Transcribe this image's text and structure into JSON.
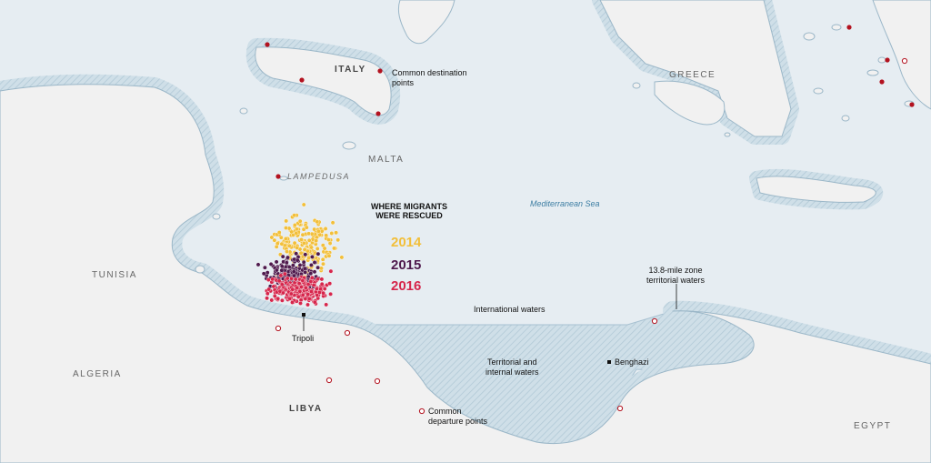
{
  "map_labels": {
    "italy": "ITALY",
    "greece": "GREECE",
    "malta": "MALTA",
    "lampedusa": "LAMPEDUSA",
    "tunisia": "TUNISIA",
    "algeria": "ALGERIA",
    "libya": "LIBYA",
    "egypt": "EGYPT",
    "sea": "Mediterranean Sea"
  },
  "annotations": {
    "destination_line1": "Common destination",
    "destination_line2": "points",
    "departure_line1": "Common",
    "departure_line2": "departure points",
    "international_waters": "International waters",
    "territorial_line1": "Territorial and",
    "territorial_line2": "internal waters",
    "zone_line1": "13.8-mile zone",
    "zone_line2": "territorial waters"
  },
  "cities": {
    "tripoli": "Tripoli",
    "benghazi": "Benghazi"
  },
  "legend": {
    "title_line1": "WHERE MIGRANTS",
    "title_line2": "WERE RESCUED",
    "items": [
      {
        "year": "2014",
        "color": "#f2bf3a"
      },
      {
        "year": "2015",
        "color": "#4f1a4d"
      },
      {
        "year": "2016",
        "color": "#d6264c"
      }
    ]
  },
  "colors": {
    "sea": "#e6edf2",
    "land": "#f1f1f1",
    "coast_band": "#c5d8e3",
    "coastline": "#9bb7c8",
    "destination_marker": "#b3121f",
    "departure_marker": "#b3121f"
  }
}
